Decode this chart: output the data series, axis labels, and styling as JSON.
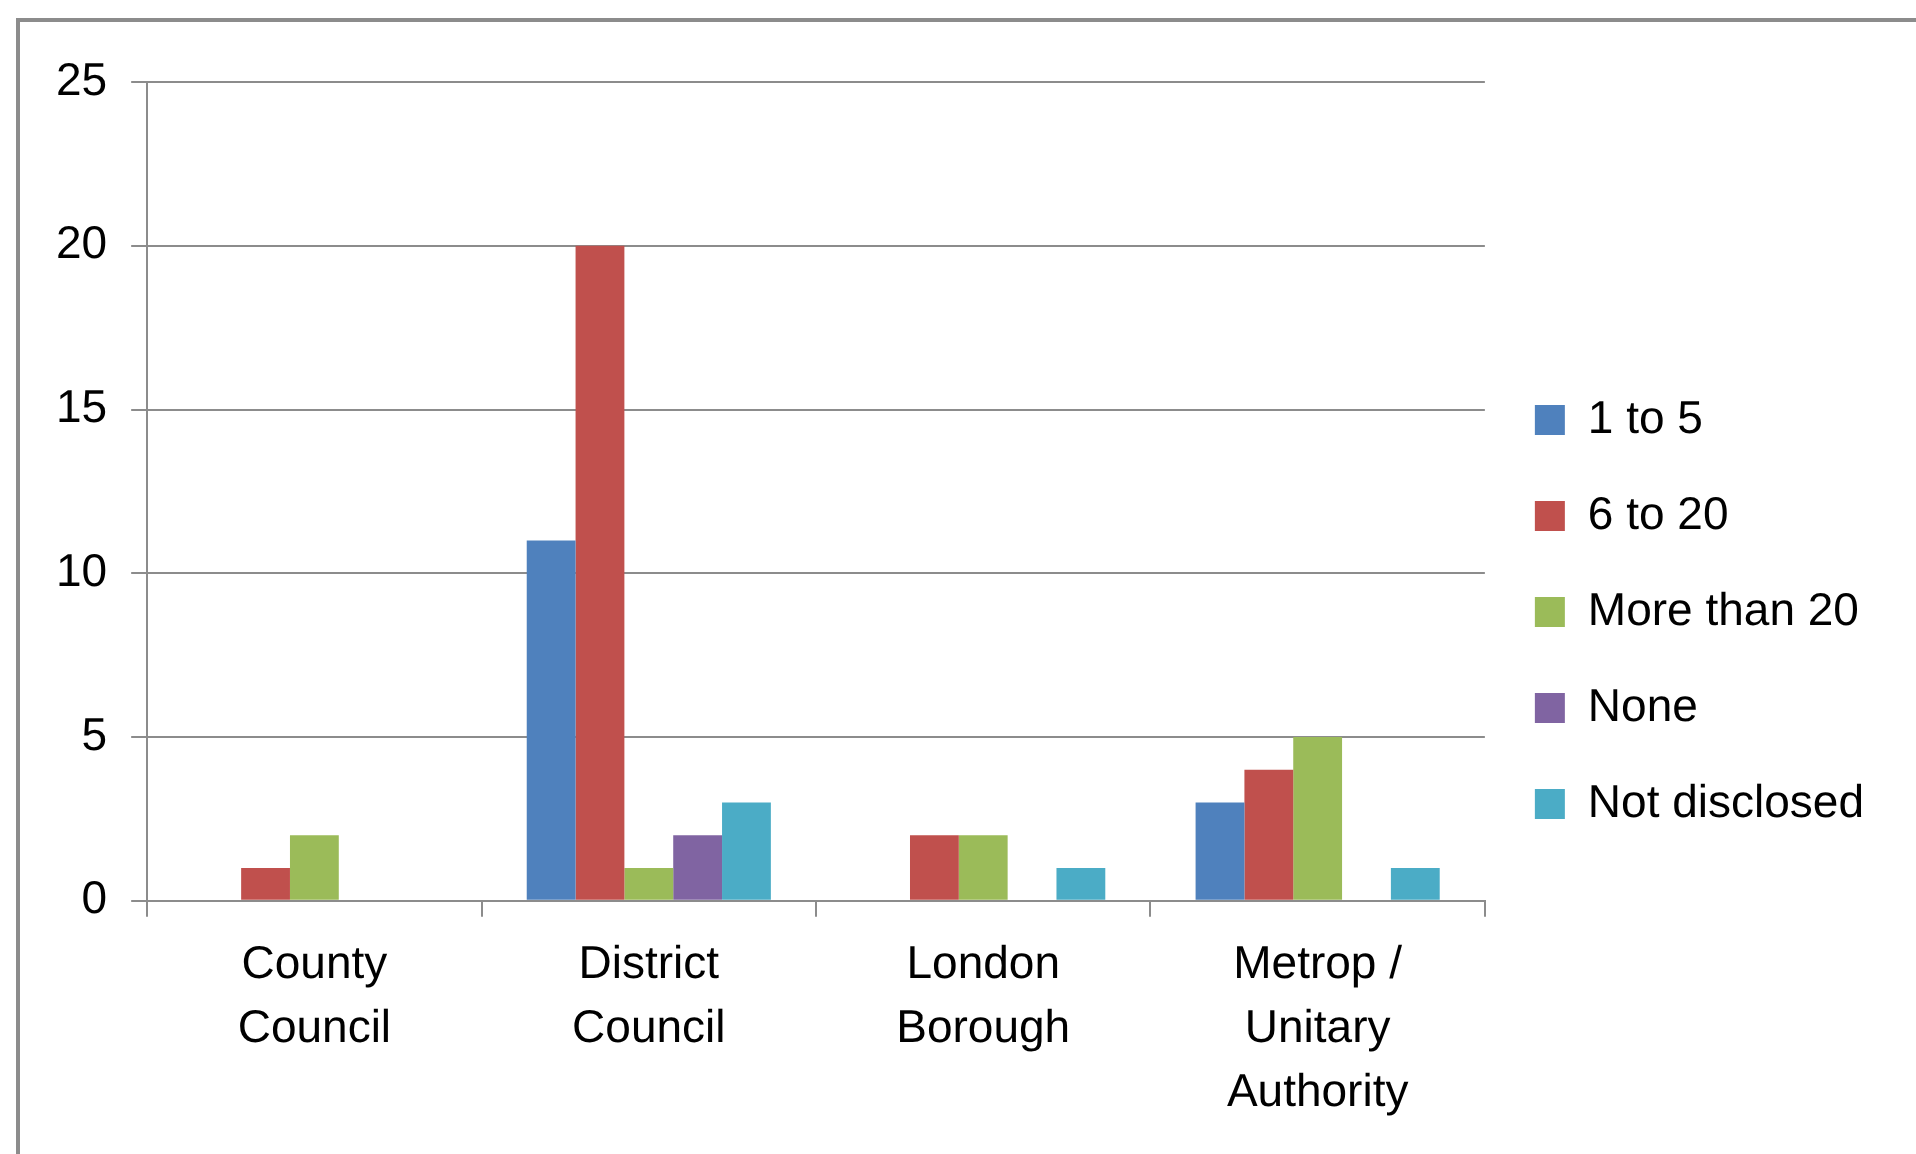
{
  "chart_data": {
    "type": "bar",
    "categories": [
      "County Council",
      "District Council",
      "London Borough",
      "Metrop / Unitary Authority"
    ],
    "series": [
      {
        "name": "1 to 5",
        "color": "#4f81bd",
        "values": [
          0,
          11,
          0,
          3
        ]
      },
      {
        "name": "6 to 20",
        "color": "#c0504d",
        "values": [
          1,
          20,
          2,
          4
        ]
      },
      {
        "name": "More than 20",
        "color": "#9bbb59",
        "values": [
          2,
          1,
          2,
          5
        ]
      },
      {
        "name": "None",
        "color": "#8064a2",
        "values": [
          0,
          2,
          0,
          0
        ]
      },
      {
        "name": "Not disclosed",
        "color": "#4bacc6",
        "values": [
          0,
          3,
          1,
          1
        ]
      }
    ],
    "ylim": [
      0,
      25
    ],
    "yticks": [
      0,
      5,
      10,
      15,
      20,
      25
    ],
    "grid": "y",
    "legend": "right"
  }
}
